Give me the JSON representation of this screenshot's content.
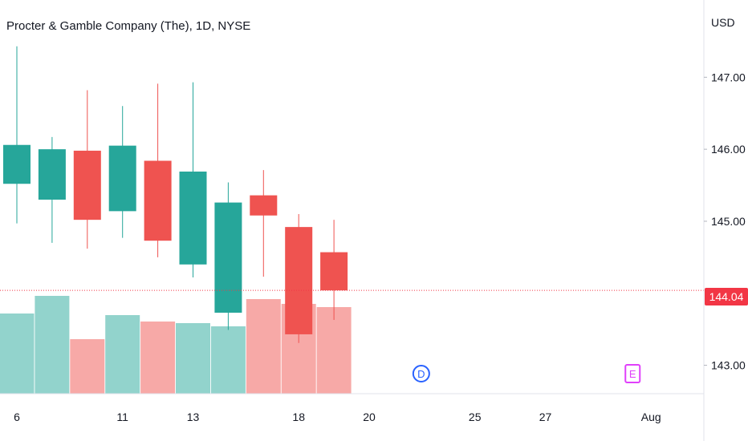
{
  "chart_data": {
    "type": "candlestick",
    "title": "Procter & Gamble Company (The), 1D, NYSE",
    "ylabel": "USD",
    "ylim": [
      142.75,
      147.85
    ],
    "y_ticks": [
      "147.00",
      "146.00",
      "145.00",
      "143.00"
    ],
    "x_ticks": [
      "6",
      "11",
      "13",
      "18",
      "20",
      "25",
      "27",
      "Aug"
    ],
    "last_price": "144.04",
    "grid": false,
    "colors": {
      "up": "#26a69a",
      "down": "#ef5350",
      "up_volume": "#92d3cc",
      "down_volume": "#f7a9a7",
      "last_price_line": "#f23645",
      "dividend_marker": "#2962ff",
      "earnings_marker": "#e040fb"
    },
    "candles": [
      {
        "date": "Jul 6",
        "open": 145.52,
        "high": 147.43,
        "low": 144.97,
        "close": 146.06,
        "volume": 0.5
      },
      {
        "date": "Jul 7",
        "open": 145.3,
        "high": 146.17,
        "low": 144.7,
        "close": 146.0,
        "volume": 0.61
      },
      {
        "date": "Jul 8",
        "open": 145.98,
        "high": 146.82,
        "low": 144.62,
        "close": 145.02,
        "volume": 0.34
      },
      {
        "date": "Jul 11",
        "open": 145.14,
        "high": 146.6,
        "low": 144.77,
        "close": 146.05,
        "volume": 0.49
      },
      {
        "date": "Jul 12",
        "open": 145.84,
        "high": 146.91,
        "low": 144.5,
        "close": 144.73,
        "volume": 0.45
      },
      {
        "date": "Jul 13",
        "open": 144.4,
        "high": 146.93,
        "low": 144.22,
        "close": 145.69,
        "volume": 0.44
      },
      {
        "date": "Jul 14",
        "open": 143.73,
        "high": 145.54,
        "low": 143.49,
        "close": 145.26,
        "volume": 0.42
      },
      {
        "date": "Jul 15",
        "open": 145.36,
        "high": 145.71,
        "low": 144.23,
        "close": 145.08,
        "volume": 0.59
      },
      {
        "date": "Jul 18",
        "open": 144.92,
        "high": 145.1,
        "low": 143.31,
        "close": 143.43,
        "volume": 0.56
      },
      {
        "date": "Jul 19",
        "open": 144.57,
        "high": 145.02,
        "low": 143.63,
        "close": 144.04,
        "volume": 0.54
      }
    ],
    "markers": [
      {
        "label": "D",
        "x_slot": 11.5
      },
      {
        "label": "E",
        "x_slot": 17.5
      }
    ]
  }
}
